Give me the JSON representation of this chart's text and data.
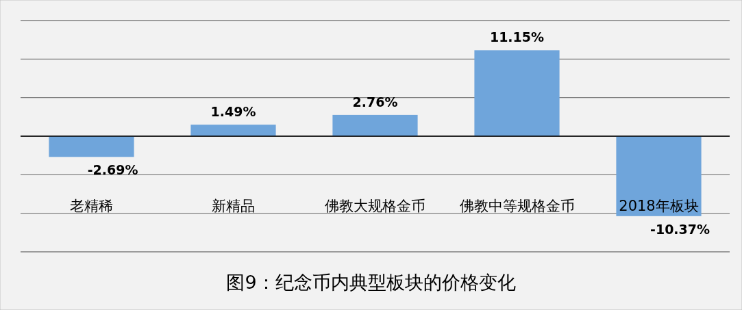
{
  "chart_data": {
    "type": "bar",
    "title": "图9：纪念币内典型板块的价格变化",
    "categories": [
      "老精稀",
      "新精品",
      "佛教大规格金币",
      "佛教中等规格金币",
      "2018年板块"
    ],
    "values": [
      -2.69,
      1.49,
      2.76,
      11.15,
      -10.37
    ],
    "value_labels": [
      "-2.69%",
      "1.49%",
      "2.76%",
      "11.15%",
      "-10.37%"
    ],
    "color": "#6fa5db",
    "ylim": [
      -15,
      15
    ],
    "yticks": [
      {
        "value": -15,
        "label": null
      },
      {
        "value": -10,
        "label": null
      },
      {
        "value": -5,
        "label": null
      },
      {
        "value": 0,
        "label": null
      },
      {
        "value": 5,
        "label": null
      },
      {
        "value": 10,
        "label": null
      },
      {
        "value": 15,
        "label": null
      }
    ],
    "grid": "y",
    "tick_labels": "x"
  }
}
